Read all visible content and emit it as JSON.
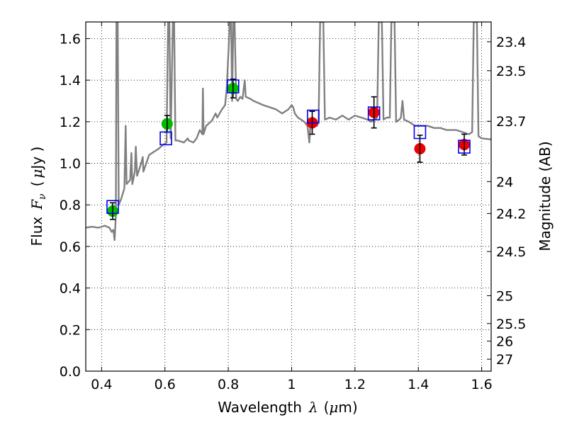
{
  "chart_data": {
    "type": "scatter",
    "title": "",
    "xlabel": {
      "prefix": "Wavelength",
      "symbol": "λ",
      "unit_open": "(",
      "unit_mu": "μ",
      "unit_rest": "m)"
    },
    "ylabel": {
      "prefix": "Flux",
      "symbol": "F",
      "subscript": "ν",
      "unit_open": "(",
      "unit_mu": "μ",
      "unit_rest": "Jy )"
    },
    "y2label": "Magnitude (AB)",
    "xlim": [
      0.35,
      1.63
    ],
    "ylim": [
      0.0,
      1.68
    ],
    "grid": true,
    "xticks": [
      {
        "value": 0.4,
        "label": "0.4"
      },
      {
        "value": 0.6,
        "label": "0.6"
      },
      {
        "value": 0.8,
        "label": "0.8"
      },
      {
        "value": 1.0,
        "label": "1"
      },
      {
        "value": 1.2,
        "label": "1.2"
      },
      {
        "value": 1.4,
        "label": "1.4"
      },
      {
        "value": 1.6,
        "label": "1.6"
      }
    ],
    "yticks": [
      {
        "value": 0.0,
        "label": "0.0"
      },
      {
        "value": 0.2,
        "label": "0.2"
      },
      {
        "value": 0.4,
        "label": "0.4"
      },
      {
        "value": 0.6,
        "label": "0.6"
      },
      {
        "value": 0.8,
        "label": "0.8"
      },
      {
        "value": 1.0,
        "label": "1.0"
      },
      {
        "value": 1.2,
        "label": "1.2"
      },
      {
        "value": 1.4,
        "label": "1.4"
      },
      {
        "value": 1.6,
        "label": "1.6"
      }
    ],
    "y2ticks": [
      {
        "mag": 23.4,
        "label": "23.4"
      },
      {
        "mag": 23.5,
        "label": "23.5"
      },
      {
        "mag": 23.7,
        "label": "23.7"
      },
      {
        "mag": 24.0,
        "label": "24"
      },
      {
        "mag": 24.2,
        "label": "24.2"
      },
      {
        "mag": 24.5,
        "label": "24.5"
      },
      {
        "mag": 25.0,
        "label": "25"
      },
      {
        "mag": 25.5,
        "label": "25.5"
      },
      {
        "mag": 26.0,
        "label": "26"
      },
      {
        "mag": 27.0,
        "label": "27"
      }
    ],
    "colors": {
      "spectrum": "#808080",
      "green_points": "#00bb00",
      "red_points": "#ee0000",
      "model_boxes": "#0000ee",
      "errorbars": "#000000"
    },
    "spectrum": [
      [
        0.35,
        0.69
      ],
      [
        0.37,
        0.695
      ],
      [
        0.39,
        0.69
      ],
      [
        0.41,
        0.7
      ],
      [
        0.425,
        0.69
      ],
      [
        0.432,
        0.67
      ],
      [
        0.437,
        0.68
      ],
      [
        0.441,
        0.63
      ],
      [
        0.445,
        0.75
      ],
      [
        0.447,
        1.68
      ],
      [
        0.451,
        1.68
      ],
      [
        0.454,
        0.8
      ],
      [
        0.462,
        0.83
      ],
      [
        0.472,
        0.88
      ],
      [
        0.476,
        1.18
      ],
      [
        0.479,
        0.9
      ],
      [
        0.49,
        0.92
      ],
      [
        0.494,
        1.05
      ],
      [
        0.497,
        0.9
      ],
      [
        0.505,
        0.96
      ],
      [
        0.508,
        1.08
      ],
      [
        0.512,
        0.94
      ],
      [
        0.525,
        1.0
      ],
      [
        0.53,
        1.03
      ],
      [
        0.532,
        0.96
      ],
      [
        0.55,
        1.04
      ],
      [
        0.58,
        1.07
      ],
      [
        0.595,
        1.09
      ],
      [
        0.605,
        1.1
      ],
      [
        0.61,
        1.68
      ],
      [
        0.614,
        1.68
      ],
      [
        0.618,
        1.12
      ],
      [
        0.625,
        1.68
      ],
      [
        0.629,
        1.68
      ],
      [
        0.633,
        1.11
      ],
      [
        0.64,
        1.11
      ],
      [
        0.66,
        1.1
      ],
      [
        0.672,
        1.12
      ],
      [
        0.675,
        1.11
      ],
      [
        0.69,
        1.1
      ],
      [
        0.7,
        1.12
      ],
      [
        0.71,
        1.16
      ],
      [
        0.718,
        1.14
      ],
      [
        0.72,
        1.36
      ],
      [
        0.722,
        1.14
      ],
      [
        0.73,
        1.18
      ],
      [
        0.745,
        1.2
      ],
      [
        0.75,
        1.21
      ],
      [
        0.76,
        1.24
      ],
      [
        0.765,
        1.22
      ],
      [
        0.78,
        1.26
      ],
      [
        0.79,
        1.28
      ],
      [
        0.795,
        1.36
      ],
      [
        0.805,
        1.68
      ],
      [
        0.809,
        1.68
      ],
      [
        0.812,
        1.3
      ],
      [
        0.816,
        1.68
      ],
      [
        0.82,
        1.68
      ],
      [
        0.825,
        1.31
      ],
      [
        0.83,
        1.3
      ],
      [
        0.838,
        1.32
      ],
      [
        0.845,
        1.31
      ],
      [
        0.852,
        1.4
      ],
      [
        0.855,
        1.32
      ],
      [
        0.87,
        1.31
      ],
      [
        0.88,
        1.3
      ],
      [
        0.895,
        1.29
      ],
      [
        0.91,
        1.28
      ],
      [
        0.93,
        1.27
      ],
      [
        0.95,
        1.26
      ],
      [
        0.97,
        1.24
      ],
      [
        0.98,
        1.25
      ],
      [
        0.99,
        1.26
      ],
      [
        1.0,
        1.28
      ],
      [
        1.005,
        1.27
      ],
      [
        1.01,
        1.24
      ],
      [
        1.02,
        1.22
      ],
      [
        1.03,
        1.21
      ],
      [
        1.04,
        1.2
      ],
      [
        1.05,
        1.18
      ],
      [
        1.056,
        1.1
      ],
      [
        1.06,
        1.2
      ],
      [
        1.075,
        1.2
      ],
      [
        1.08,
        1.18
      ],
      [
        1.085,
        1.2
      ],
      [
        1.09,
        1.68
      ],
      [
        1.1,
        1.68
      ],
      [
        1.105,
        1.21
      ],
      [
        1.12,
        1.22
      ],
      [
        1.14,
        1.21
      ],
      [
        1.16,
        1.23
      ],
      [
        1.18,
        1.21
      ],
      [
        1.2,
        1.23
      ],
      [
        1.22,
        1.22
      ],
      [
        1.24,
        1.21
      ],
      [
        1.25,
        1.2
      ],
      [
        1.26,
        1.21
      ],
      [
        1.27,
        1.22
      ],
      [
        1.275,
        1.68
      ],
      [
        1.285,
        1.68
      ],
      [
        1.29,
        1.21
      ],
      [
        1.3,
        1.22
      ],
      [
        1.31,
        1.22
      ],
      [
        1.315,
        1.68
      ],
      [
        1.325,
        1.68
      ],
      [
        1.33,
        1.2
      ],
      [
        1.34,
        1.21
      ],
      [
        1.345,
        1.22
      ],
      [
        1.35,
        1.3
      ],
      [
        1.355,
        1.21
      ],
      [
        1.37,
        1.2
      ],
      [
        1.39,
        1.18
      ],
      [
        1.41,
        1.18
      ],
      [
        1.43,
        1.18
      ],
      [
        1.45,
        1.17
      ],
      [
        1.47,
        1.17
      ],
      [
        1.49,
        1.16
      ],
      [
        1.5,
        1.16
      ],
      [
        1.52,
        1.16
      ],
      [
        1.54,
        1.15
      ],
      [
        1.56,
        1.14
      ],
      [
        1.57,
        1.15
      ],
      [
        1.575,
        1.68
      ],
      [
        1.585,
        1.68
      ],
      [
        1.59,
        1.13
      ],
      [
        1.6,
        1.12
      ],
      [
        1.63,
        1.115
      ]
    ],
    "series": [
      {
        "marker": "circle",
        "color_key": "green_points",
        "points": [
          {
            "x": 0.435,
            "y": 0.77,
            "err": 0.04
          },
          {
            "x": 0.607,
            "y": 1.19,
            "err": 0.04
          },
          {
            "x": 0.815,
            "y": 1.36,
            "err": 0.045
          }
        ]
      },
      {
        "marker": "circle",
        "color_key": "red_points",
        "points": [
          {
            "x": 1.065,
            "y": 1.195,
            "err": 0.055
          },
          {
            "x": 1.26,
            "y": 1.245,
            "err": 0.075
          },
          {
            "x": 1.405,
            "y": 1.07,
            "err": 0.065
          },
          {
            "x": 1.545,
            "y": 1.09,
            "err": 0.05
          }
        ]
      },
      {
        "marker": "square",
        "color_key": "model_boxes",
        "points": [
          {
            "x": 0.435,
            "y": 0.79
          },
          {
            "x": 0.603,
            "y": 1.12
          },
          {
            "x": 0.815,
            "y": 1.37
          },
          {
            "x": 1.068,
            "y": 1.225
          },
          {
            "x": 1.26,
            "y": 1.24
          },
          {
            "x": 1.405,
            "y": 1.15
          },
          {
            "x": 1.545,
            "y": 1.08
          }
        ]
      }
    ]
  }
}
